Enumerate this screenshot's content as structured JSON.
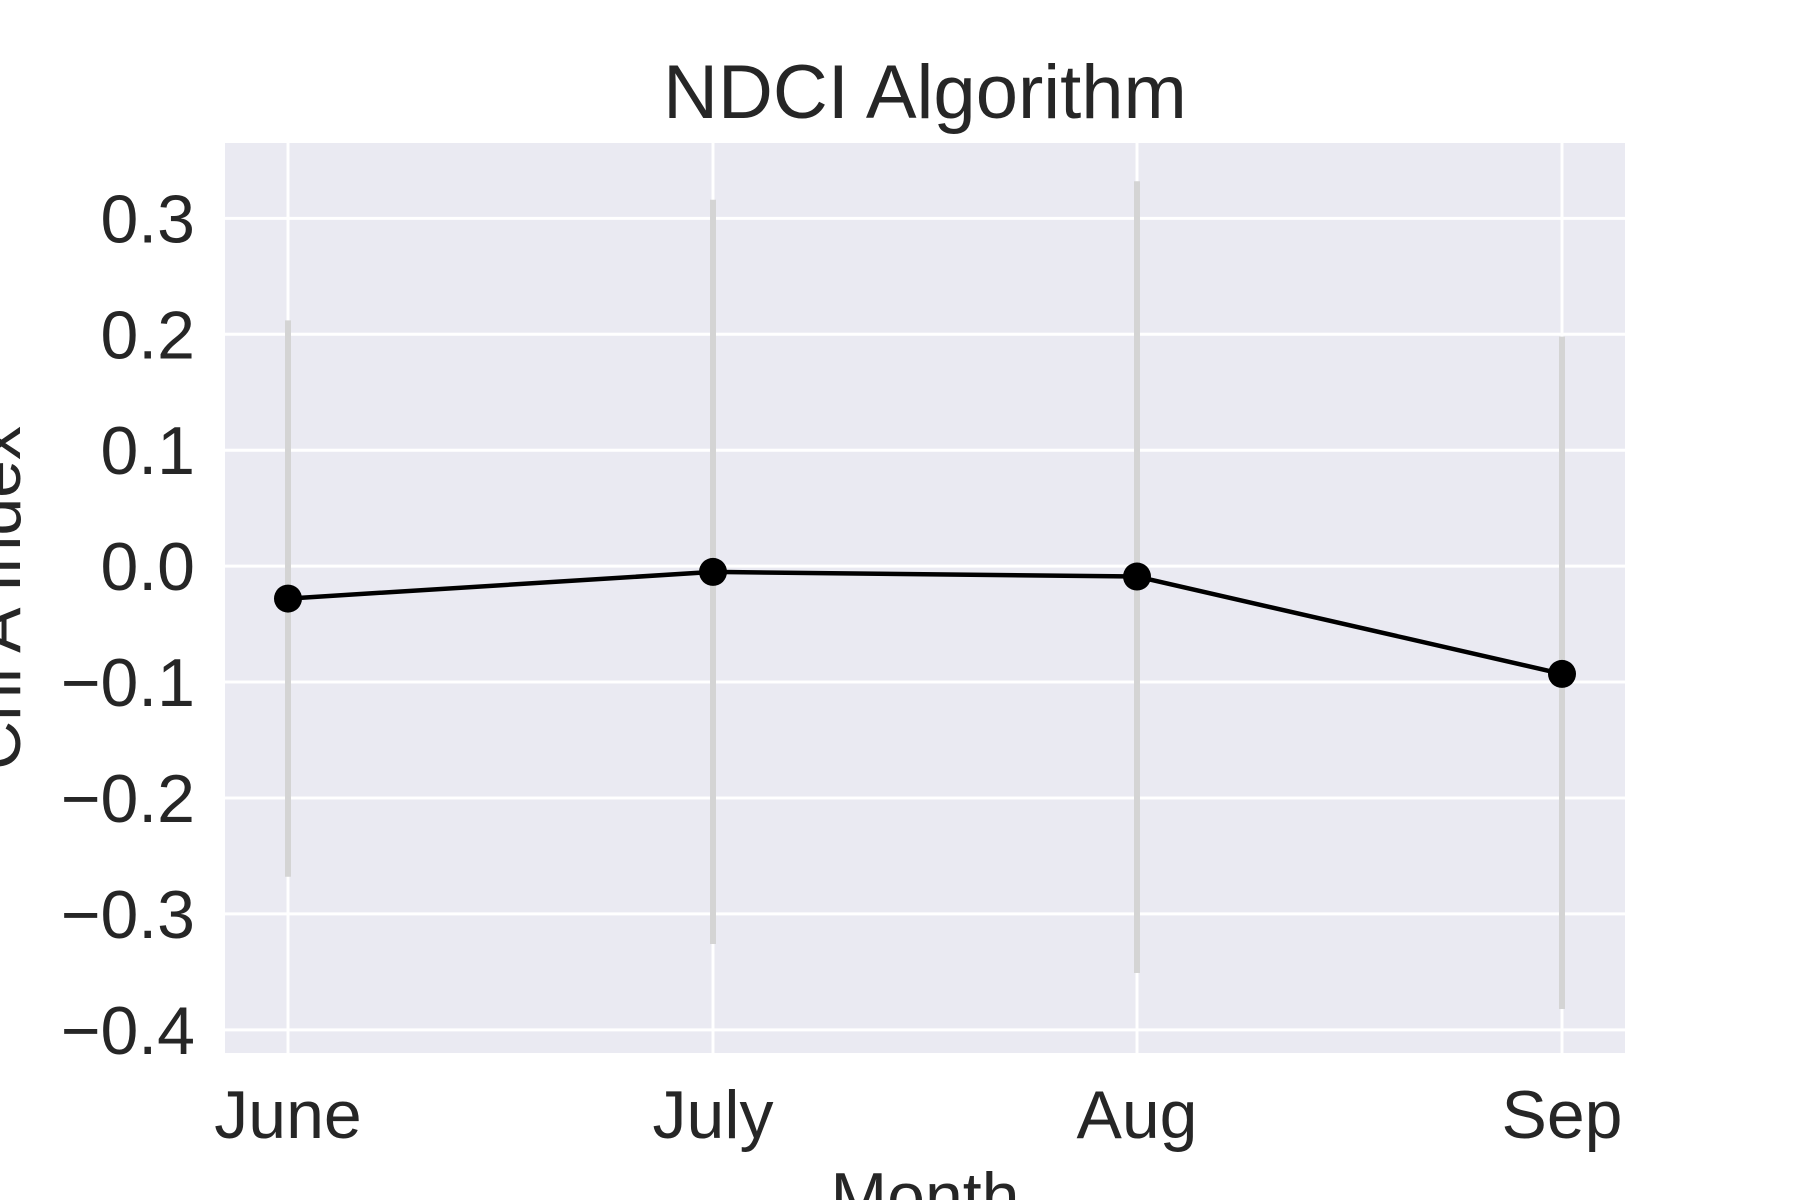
{
  "chart_data": {
    "type": "line",
    "title": "NDCI Algorithm",
    "xlabel": "Month",
    "ylabel": "Chl A Index",
    "categories": [
      "June",
      "July",
      "Aug",
      "Sep"
    ],
    "series": [
      {
        "values": [
          -0.028,
          -0.005,
          -0.009,
          -0.093
        ],
        "error_low": [
          -0.268,
          -0.326,
          -0.351,
          -0.382
        ],
        "error_high": [
          0.212,
          0.316,
          0.332,
          0.198
        ]
      }
    ],
    "yticks": [
      0.3,
      0.2,
      0.1,
      0.0,
      -0.1,
      -0.2,
      -0.3,
      -0.4
    ],
    "ytick_labels": [
      "0.3",
      "0.2",
      "0.1",
      "0.0",
      "−0.1",
      "−0.2",
      "−0.3",
      "−0.4"
    ],
    "ylim": [
      -0.42,
      0.365
    ],
    "grid": true,
    "legend": "none",
    "colors": {
      "plot_background": "#eaeaf2",
      "grid": "#ffffff",
      "line": "#000000",
      "marker": "#000000",
      "error_bar": "#d4d4d4",
      "text": "#262626"
    }
  }
}
